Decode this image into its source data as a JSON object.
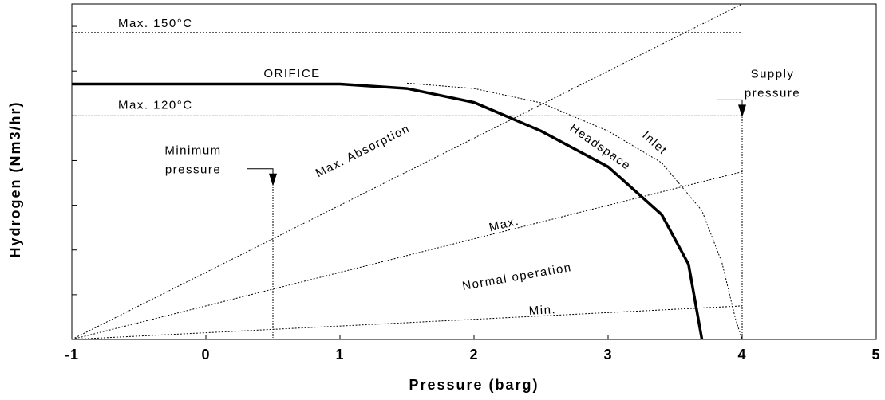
{
  "chart_data": {
    "type": "line",
    "xlabel": "Pressure  (barg)",
    "ylabel": "Hydrogen (Nm3/hr)",
    "xlim": [
      -1,
      5
    ],
    "xticks": [
      -1,
      0,
      1,
      2,
      3,
      4,
      5
    ],
    "ylim": [
      0,
      7.5
    ],
    "yticks": [
      0,
      1,
      2,
      3,
      4,
      5,
      6,
      7
    ],
    "series": [
      {
        "name": "Headspace",
        "color": "#000000",
        "style": "solid",
        "x": [
          -1,
          1,
          1.5,
          2,
          2.5,
          3,
          3.4,
          3.6,
          3.7
        ],
        "values": [
          5.71,
          5.71,
          5.61,
          5.3,
          4.66,
          3.86,
          2.79,
          1.68,
          0
        ]
      },
      {
        "name": "Inlet",
        "color": "#000000",
        "style": "dotted",
        "x": [
          1.5,
          2,
          2.5,
          3,
          3.4,
          3.7,
          3.85,
          3.95,
          4
        ],
        "values": [
          5.73,
          5.61,
          5.29,
          4.66,
          3.95,
          2.88,
          1.71,
          0.46,
          0
        ]
      },
      {
        "name": "Max. Absorption",
        "color": "#000000",
        "style": "dotted",
        "x": [
          -1,
          4
        ],
        "values": [
          0,
          7.5
        ]
      },
      {
        "name": "Max.",
        "color": "#000000",
        "style": "dotted",
        "x": [
          -1,
          4
        ],
        "values": [
          0,
          3.75
        ]
      },
      {
        "name": "Min.",
        "color": "#000000",
        "style": "dotted",
        "x": [
          -1,
          4
        ],
        "values": [
          0,
          0.75
        ]
      }
    ],
    "hlines": [
      {
        "label": "Max. 150°C",
        "value": 6.86
      },
      {
        "label": "Max. 120°C",
        "value": 5.0
      }
    ],
    "vlines": [
      {
        "label": [
          "Minimum",
          "pressure"
        ],
        "value": 0.5,
        "y_end": 3.46
      },
      {
        "label": [
          "Supply",
          "pressure"
        ],
        "value": 4,
        "y_end": 5.0
      }
    ],
    "annotations": [
      "ORIFICE",
      "Normal operation"
    ]
  }
}
